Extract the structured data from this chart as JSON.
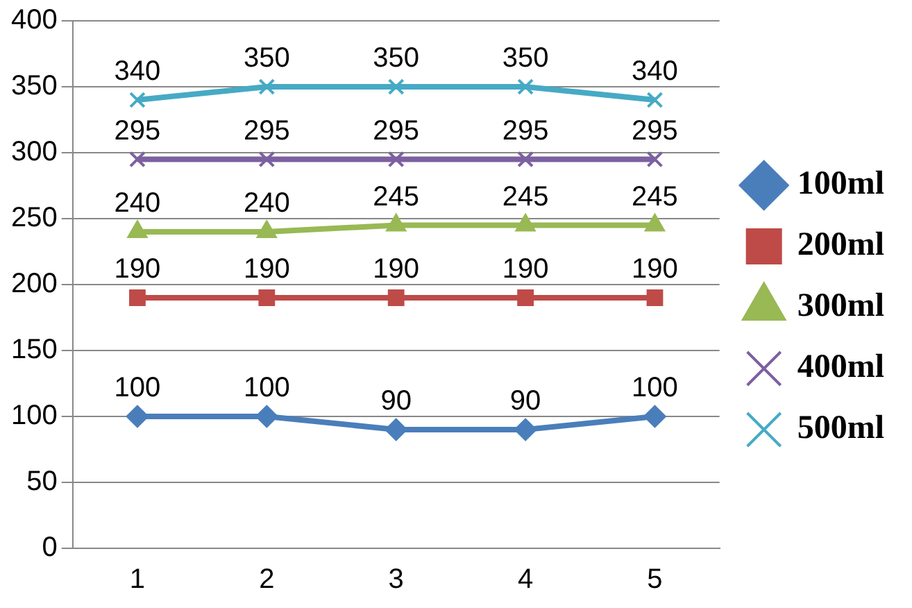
{
  "chart_data": {
    "type": "line",
    "categories": [
      "1",
      "2",
      "3",
      "4",
      "5"
    ],
    "series": [
      {
        "name": "100ml",
        "color": "#4a7ebb",
        "marker": "diamond",
        "values": [
          100,
          100,
          90,
          90,
          100
        ]
      },
      {
        "name": "200ml",
        "color": "#be4b48",
        "marker": "square",
        "values": [
          190,
          190,
          190,
          190,
          190
        ]
      },
      {
        "name": "300ml",
        "color": "#98b954",
        "marker": "triangle",
        "values": [
          240,
          240,
          245,
          245,
          245
        ]
      },
      {
        "name": "400ml",
        "color": "#7d60a0",
        "marker": "cross",
        "values": [
          295,
          295,
          295,
          295,
          295
        ]
      },
      {
        "name": "500ml",
        "color": "#46aac5",
        "marker": "cross",
        "values": [
          340,
          350,
          350,
          350,
          340
        ]
      }
    ],
    "ylim": [
      0,
      400
    ],
    "yticks": [
      0,
      50,
      100,
      150,
      200,
      250,
      300,
      350,
      400
    ],
    "grid": "y",
    "legend": "right",
    "data_labels": true,
    "line_style": "solid"
  }
}
